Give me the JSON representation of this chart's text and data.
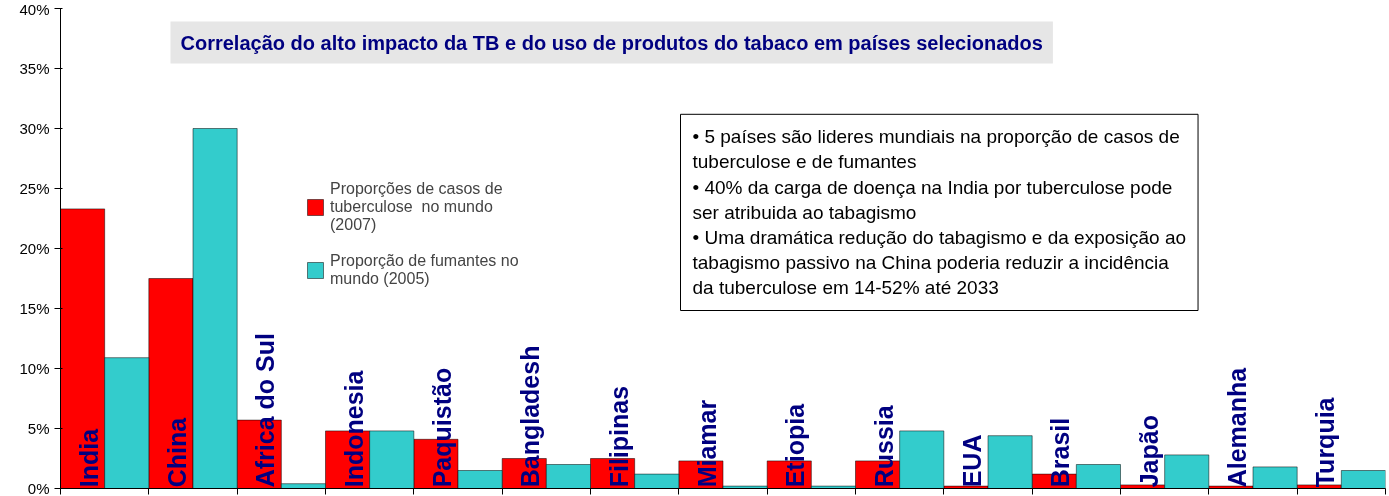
{
  "chart_data": {
    "type": "bar",
    "title": "Correlação do alto impacto da TB e do uso de produtos do tabaco em países selecionados",
    "categories": [
      "India",
      "China",
      "Africa do Sul",
      "Indonesia",
      "Paquistão",
      "Bangladesh",
      "Filipinas",
      "Miamar",
      "Etiopia",
      "Russia",
      "EUA",
      "Brasil",
      "Japão",
      "Alemanha",
      "Turquia"
    ],
    "series": [
      {
        "name": "Proporções de casos de tuberculose  no mundo (2007)",
        "color": "#ff0000",
        "values": [
          23.3,
          17.5,
          5.7,
          4.8,
          4.1,
          2.5,
          2.5,
          2.3,
          2.3,
          2.3,
          0.2,
          1.2,
          0.3,
          0.2,
          0.3
        ]
      },
      {
        "name": "Proporção de fumantes no mundo (2005)",
        "color": "#33cccc",
        "values": [
          10.9,
          30.0,
          0.4,
          4.8,
          1.5,
          2.0,
          1.2,
          0.2,
          0.2,
          4.8,
          4.4,
          2.0,
          2.8,
          1.8,
          1.5
        ]
      }
    ],
    "ylim": [
      0,
      40
    ],
    "yticks": [
      {
        "value": 0,
        "label": "0%"
      },
      {
        "value": 5,
        "label": "5%"
      },
      {
        "value": 10,
        "label": "10%"
      },
      {
        "value": 15,
        "label": "15%"
      },
      {
        "value": 20,
        "label": "20%"
      },
      {
        "value": 25,
        "label": "25%"
      },
      {
        "value": 30,
        "label": "30%"
      },
      {
        "value": 35,
        "label": "35%"
      },
      {
        "value": 40,
        "label": "40%"
      }
    ],
    "grid": false,
    "legend": "top left",
    "annotations": [
      "• 5 países são lideres mundiais na proporção de casos de tuberculose e de fumantes",
      "• 40% da carga de doença na India por tuberculose pode ser atribuida ao tabagismo",
      "• Uma dramática redução do tabagismo e da exposição ao tabagismo passivo na China poderia reduzir a incidência da tuberculose em 14-52% até 2033"
    ]
  }
}
